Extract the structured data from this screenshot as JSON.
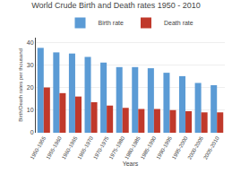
{
  "chart_data": {
    "type": "bar",
    "title": "World Crude Birth and Death rates 1950 - 2010",
    "xlabel": "Years",
    "ylabel": "Birth/Death rates per thousand",
    "categories": [
      "1950-1955",
      "1955-1960",
      "1960-1965",
      "1965-1970",
      "1970-1975",
      "1975-1980",
      "1980-1985",
      "1985-1990",
      "1990-1995",
      "1995-2000",
      "2000-2005",
      "2005-2010"
    ],
    "series": [
      {
        "name": "Birth rate",
        "color": "#5b9bd5",
        "values": [
          37.5,
          35.5,
          35.0,
          33.5,
          31.0,
          29.0,
          29.0,
          28.5,
          26.5,
          25.0,
          22.0,
          21.0
        ]
      },
      {
        "name": "Death rate",
        "color": "#c0392b",
        "values": [
          20.0,
          17.5,
          16.0,
          13.5,
          12.0,
          11.0,
          10.5,
          10.5,
          10.0,
          9.5,
          9.0,
          9.0
        ]
      }
    ],
    "ylim": [
      0,
      42
    ],
    "yticks": [
      0,
      10,
      20,
      30,
      40
    ],
    "grid": true,
    "legend": "top"
  }
}
